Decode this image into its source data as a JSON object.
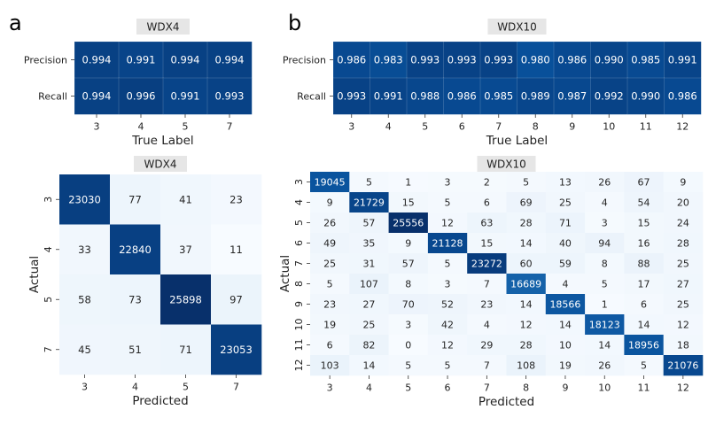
{
  "panel_labels": [
    "a",
    "b"
  ],
  "colors": {
    "cmap": [
      "#f7fbff",
      "#deebf7",
      "#c6dbef",
      "#9ecae1",
      "#6baed6",
      "#4292c6",
      "#2171b5",
      "#08519c",
      "#08306b"
    ],
    "title_bg": "#e6e6e6",
    "text_light": "#ffffff",
    "text_dark": "#262626"
  },
  "chart_data": [
    {
      "type": "heatmap",
      "panel": "a",
      "title": "WDX4",
      "xlabel": "True Label",
      "ylabel": "",
      "x_categories": [
        "3",
        "4",
        "5",
        "7"
      ],
      "y_categories": [
        "Precision",
        "Recall"
      ],
      "values": [
        [
          "0.994",
          "0.991",
          "0.994",
          "0.994"
        ],
        [
          "0.994",
          "0.996",
          "0.991",
          "0.993"
        ]
      ],
      "vmin": 0.0,
      "vmax": 1.0
    },
    {
      "type": "heatmap",
      "panel": "b",
      "title": "WDX10",
      "xlabel": "True Label",
      "ylabel": "",
      "x_categories": [
        "3",
        "4",
        "5",
        "6",
        "7",
        "8",
        "9",
        "10",
        "11",
        "12"
      ],
      "y_categories": [
        "Precision",
        "Recall"
      ],
      "values": [
        [
          "0.986",
          "0.983",
          "0.993",
          "0.993",
          "0.993",
          "0.980",
          "0.986",
          "0.990",
          "0.985",
          "0.991"
        ],
        [
          "0.993",
          "0.991",
          "0.988",
          "0.986",
          "0.985",
          "0.989",
          "0.987",
          "0.992",
          "0.990",
          "0.986"
        ]
      ],
      "vmin": 0.0,
      "vmax": 1.0
    },
    {
      "type": "heatmap",
      "panel": "a",
      "title": "WDX4",
      "xlabel": "Predicted",
      "ylabel": "Actual",
      "x_categories": [
        "3",
        "4",
        "5",
        "7"
      ],
      "y_categories": [
        "3",
        "4",
        "5",
        "7"
      ],
      "values": [
        [
          23030,
          77,
          41,
          23
        ],
        [
          33,
          22840,
          37,
          11
        ],
        [
          58,
          73,
          25898,
          97
        ],
        [
          45,
          51,
          71,
          23053
        ]
      ]
    },
    {
      "type": "heatmap",
      "panel": "b",
      "title": "WDX10",
      "xlabel": "Predicted",
      "ylabel": "Actual",
      "x_categories": [
        "3",
        "4",
        "5",
        "6",
        "7",
        "8",
        "9",
        "10",
        "11",
        "12"
      ],
      "y_categories": [
        "3",
        "4",
        "5",
        "6",
        "7",
        "8",
        "9",
        "10",
        "11",
        "12"
      ],
      "values": [
        [
          19045,
          5,
          1,
          3,
          2,
          5,
          13,
          26,
          67,
          9
        ],
        [
          9,
          21729,
          15,
          5,
          6,
          69,
          25,
          4,
          54,
          20
        ],
        [
          26,
          57,
          25556,
          12,
          63,
          28,
          71,
          3,
          15,
          24
        ],
        [
          49,
          35,
          9,
          21128,
          15,
          14,
          40,
          94,
          16,
          28
        ],
        [
          25,
          31,
          57,
          5,
          23272,
          60,
          59,
          8,
          88,
          25
        ],
        [
          5,
          107,
          8,
          3,
          7,
          16689,
          4,
          5,
          17,
          27
        ],
        [
          23,
          27,
          70,
          52,
          23,
          14,
          18566,
          1,
          6,
          25
        ],
        [
          19,
          25,
          3,
          42,
          4,
          12,
          14,
          18123,
          14,
          12
        ],
        [
          6,
          82,
          0,
          12,
          29,
          28,
          10,
          14,
          18956,
          18
        ],
        [
          103,
          14,
          5,
          5,
          7,
          108,
          19,
          26,
          5,
          21076
        ]
      ]
    }
  ]
}
